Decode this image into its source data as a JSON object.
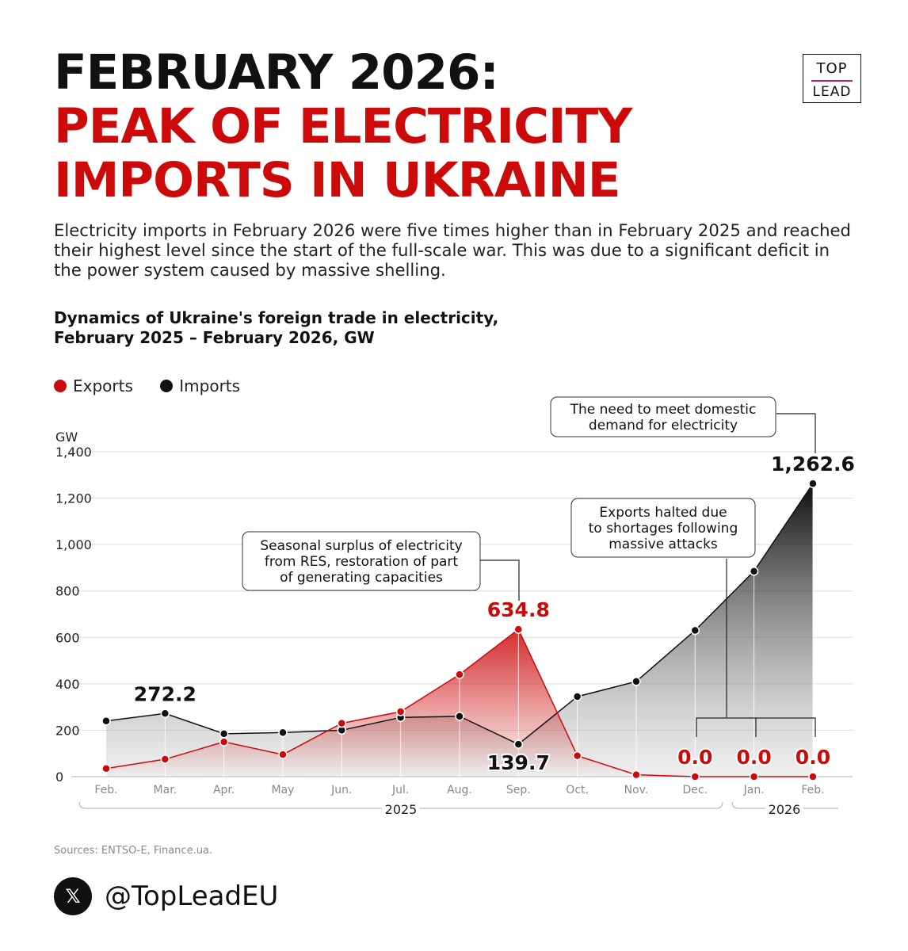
{
  "header": {
    "title_line1": "FEBRUARY 2026:",
    "title_line2": "PEAK OF ELECTRICITY",
    "title_line3": "IMPORTS IN UKRAINE",
    "logo_top": "TOP",
    "logo_bottom": "LEAD"
  },
  "lead_text": "Electricity imports in February 2026 were five times higher than in February 2025 and reached their highest level since the start of the full-scale war. This was due to a significant deficit in the power system caused by massive shelling.",
  "subtitle_line1": "Dynamics of Ukraine's foreign trade in electricity,",
  "subtitle_line2": "February 2025 – February 2026, GW",
  "legend": [
    {
      "label": "Exports",
      "color": "#cc0a0a"
    },
    {
      "label": "Imports",
      "color": "#111111"
    }
  ],
  "chart_data": {
    "type": "area",
    "ylabel": "GW",
    "ylim": [
      0,
      1400
    ],
    "yticks": [
      0,
      200,
      400,
      600,
      800,
      1000,
      1200,
      1400
    ],
    "ytick_labels": [
      "0",
      "200",
      "400",
      "600",
      "800",
      "1,000",
      "1,200",
      "1,400"
    ],
    "categories": [
      "Feb.",
      "Mar.",
      "Apr.",
      "May",
      "Jun.",
      "Jul.",
      "Aug.",
      "Sep.",
      "Oct.",
      "Nov.",
      "Dec.",
      "Jan.",
      "Feb."
    ],
    "year_groups": [
      {
        "label": "2025",
        "from": 0,
        "to": 10
      },
      {
        "label": "2026",
        "from": 11,
        "to": 12
      }
    ],
    "series": [
      {
        "name": "Exports",
        "color": "#cc0a0a",
        "values": [
          35,
          75,
          150,
          95,
          230,
          280,
          440,
          634.8,
          90,
          8,
          0.0,
          0.0,
          0.0
        ]
      },
      {
        "name": "Imports",
        "color": "#111111",
        "values": [
          240,
          272.2,
          185,
          190,
          200,
          255,
          260,
          139.7,
          345,
          410,
          630,
          885,
          1262.6
        ]
      }
    ],
    "data_labels": [
      {
        "series": 1,
        "index": 1,
        "text": "272.2",
        "color": "#111111",
        "place": "above"
      },
      {
        "series": 0,
        "index": 7,
        "text": "634.8",
        "color": "#cc0a0a",
        "place": "above"
      },
      {
        "series": 1,
        "index": 7,
        "text": "139.7",
        "color": "#111111",
        "place": "below"
      },
      {
        "series": 1,
        "index": 12,
        "text": "1,262.6",
        "color": "#111111",
        "place": "above"
      },
      {
        "series": 0,
        "index": 10,
        "text": "0.0",
        "color": "#cc0a0a",
        "place": "above"
      },
      {
        "series": 0,
        "index": 11,
        "text": "0.0",
        "color": "#cc0a0a",
        "place": "above"
      },
      {
        "series": 0,
        "index": 12,
        "text": "0.0",
        "color": "#cc0a0a",
        "place": "above"
      }
    ],
    "annotations": [
      {
        "lines": [
          "Seasonal surplus of electricity",
          "from RES, restoration of part",
          "of generating capacities"
        ],
        "target_index": 7
      },
      {
        "lines": [
          "Exports halted due",
          "to shortages following",
          "massive attacks"
        ],
        "target_indices": [
          10,
          11,
          12
        ]
      },
      {
        "lines": [
          "The need to meet domestic",
          "demand for electricity"
        ],
        "target_index": 12
      }
    ]
  },
  "sources": "Sources: ENTSO-E, Finance.ua.",
  "social_handle": "@TopLeadEU",
  "social_icon": "x-logo-icon"
}
